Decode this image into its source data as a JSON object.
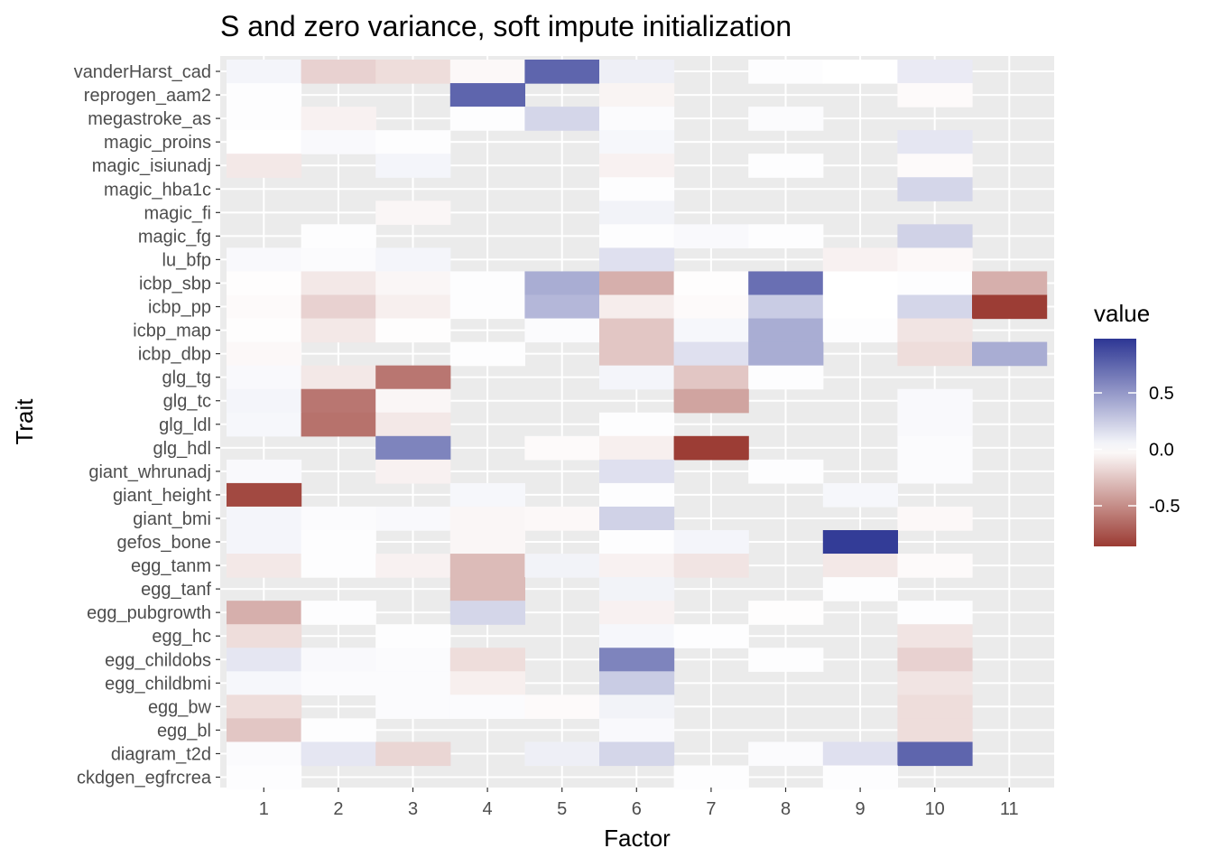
{
  "chart_data": {
    "type": "heatmap",
    "title": "S and zero variance, soft impute initialization",
    "xlabel": "Factor",
    "ylabel": "Trait",
    "x_categories": [
      "1",
      "2",
      "3",
      "4",
      "5",
      "6",
      "7",
      "8",
      "9",
      "10",
      "11"
    ],
    "y_categories": [
      "vanderHarst_cad",
      "reprogen_aam2",
      "megastroke_as",
      "magic_proins",
      "magic_isiunadj",
      "magic_hba1c",
      "magic_fi",
      "magic_fg",
      "lu_bfp",
      "icbp_sbp",
      "icbp_pp",
      "icbp_map",
      "icbp_dbp",
      "glg_tg",
      "glg_tc",
      "glg_ldl",
      "glg_hdl",
      "giant_whrunadj",
      "giant_height",
      "giant_bmi",
      "gefos_bone",
      "egg_tanm",
      "egg_tanf",
      "egg_pubgrowth",
      "egg_hc",
      "egg_childobs",
      "egg_childbmi",
      "egg_bw",
      "egg_bl",
      "diagram_t2d",
      "ckdgen_egfrcrea"
    ],
    "values": [
      [
        0.05,
        -0.2,
        -0.15,
        -0.03,
        0.75,
        0.08,
        null,
        0.01,
        0,
        0.1,
        null
      ],
      [
        0.01,
        null,
        null,
        0.75,
        null,
        -0.05,
        null,
        null,
        null,
        -0.02,
        null
      ],
      [
        0.01,
        -0.06,
        null,
        0.01,
        0.2,
        0.02,
        null,
        0.02,
        null,
        null,
        null
      ],
      [
        0,
        0.03,
        0.01,
        null,
        null,
        0.04,
        null,
        null,
        null,
        0.12,
        null
      ],
      [
        -0.1,
        null,
        0.05,
        null,
        null,
        -0.06,
        null,
        0.01,
        null,
        -0.02,
        null
      ],
      [
        null,
        null,
        null,
        null,
        null,
        0.01,
        null,
        null,
        null,
        0.2,
        null
      ],
      [
        null,
        null,
        -0.04,
        null,
        null,
        0.06,
        null,
        null,
        null,
        null,
        null
      ],
      [
        null,
        0.01,
        null,
        null,
        null,
        0.01,
        0.03,
        0.01,
        null,
        0.22,
        null
      ],
      [
        0.03,
        0.02,
        0.05,
        null,
        null,
        0.15,
        null,
        null,
        -0.06,
        -0.03,
        null
      ],
      [
        -0.01,
        -0.1,
        -0.04,
        0.01,
        0.4,
        -0.35,
        -0.01,
        0.7,
        0,
        0.01,
        -0.35
      ],
      [
        -0.02,
        -0.2,
        -0.07,
        0.01,
        0.35,
        -0.08,
        -0.02,
        0.25,
        0,
        0.2,
        -0.85
      ],
      [
        -0.01,
        -0.1,
        -0.01,
        null,
        0.02,
        -0.25,
        0.04,
        0.4,
        0.01,
        -0.12,
        null
      ],
      [
        -0.03,
        null,
        null,
        0.01,
        null,
        -0.25,
        0.15,
        0.4,
        null,
        -0.15,
        0.4
      ],
      [
        0.03,
        -0.1,
        -0.6,
        null,
        null,
        0.05,
        -0.25,
        0.01,
        null,
        null,
        null
      ],
      [
        0.05,
        -0.6,
        -0.04,
        null,
        null,
        null,
        -0.4,
        null,
        null,
        0.03,
        null
      ],
      [
        0.04,
        -0.62,
        -0.1,
        null,
        null,
        0.01,
        null,
        null,
        null,
        0.03,
        null
      ],
      [
        null,
        null,
        0.6,
        null,
        -0.02,
        -0.07,
        -0.85,
        null,
        null,
        0.02,
        null
      ],
      [
        0.03,
        null,
        -0.06,
        null,
        null,
        0.15,
        null,
        0.01,
        null,
        0.02,
        null
      ],
      [
        -0.8,
        null,
        null,
        0.04,
        null,
        0.01,
        null,
        null,
        0.04,
        null,
        null
      ],
      [
        0.05,
        0.02,
        0.03,
        -0.04,
        -0.03,
        0.22,
        null,
        null,
        null,
        -0.03,
        null
      ],
      [
        0.05,
        0.01,
        null,
        -0.04,
        null,
        0.01,
        0.05,
        null,
        0.95,
        null,
        null
      ],
      [
        -0.1,
        0.01,
        -0.06,
        -0.3,
        0.06,
        -0.06,
        -0.12,
        null,
        -0.1,
        -0.02,
        null
      ],
      [
        null,
        null,
        null,
        -0.3,
        null,
        0.06,
        null,
        null,
        0.01,
        null,
        null
      ],
      [
        -0.35,
        0.01,
        null,
        0.2,
        null,
        -0.06,
        null,
        -0.01,
        null,
        0.01,
        null
      ],
      [
        -0.15,
        null,
        0.01,
        null,
        null,
        0.04,
        0.01,
        null,
        null,
        -0.12,
        null
      ],
      [
        0.12,
        0.03,
        0.02,
        -0.15,
        null,
        0.6,
        null,
        0.01,
        null,
        -0.2,
        null
      ],
      [
        0.04,
        0.02,
        0.02,
        -0.07,
        null,
        0.25,
        null,
        null,
        null,
        -0.12,
        null
      ],
      [
        -0.15,
        null,
        0.02,
        0.02,
        -0.02,
        0.06,
        null,
        null,
        null,
        -0.15,
        null
      ],
      [
        -0.25,
        0.01,
        null,
        null,
        null,
        0.03,
        null,
        null,
        null,
        -0.15,
        null
      ],
      [
        0.02,
        0.12,
        -0.18,
        null,
        0.08,
        0.2,
        null,
        0.02,
        0.15,
        0.75,
        null
      ],
      [
        0.01,
        null,
        null,
        null,
        null,
        null,
        0.01,
        null,
        0.01,
        null,
        null
      ]
    ],
    "legend": {
      "title": "value",
      "ticks": [
        "0.5",
        "0.0",
        "-0.5"
      ],
      "tick_values": [
        0.5,
        0,
        -0.5
      ],
      "range": [
        -0.86,
        0.98
      ],
      "low_color": "#9b3b33",
      "mid_color": "#ffffff",
      "high_color": "#2d3694",
      "placement": "right"
    },
    "grid": true,
    "panel_background": "#ebebeb"
  }
}
